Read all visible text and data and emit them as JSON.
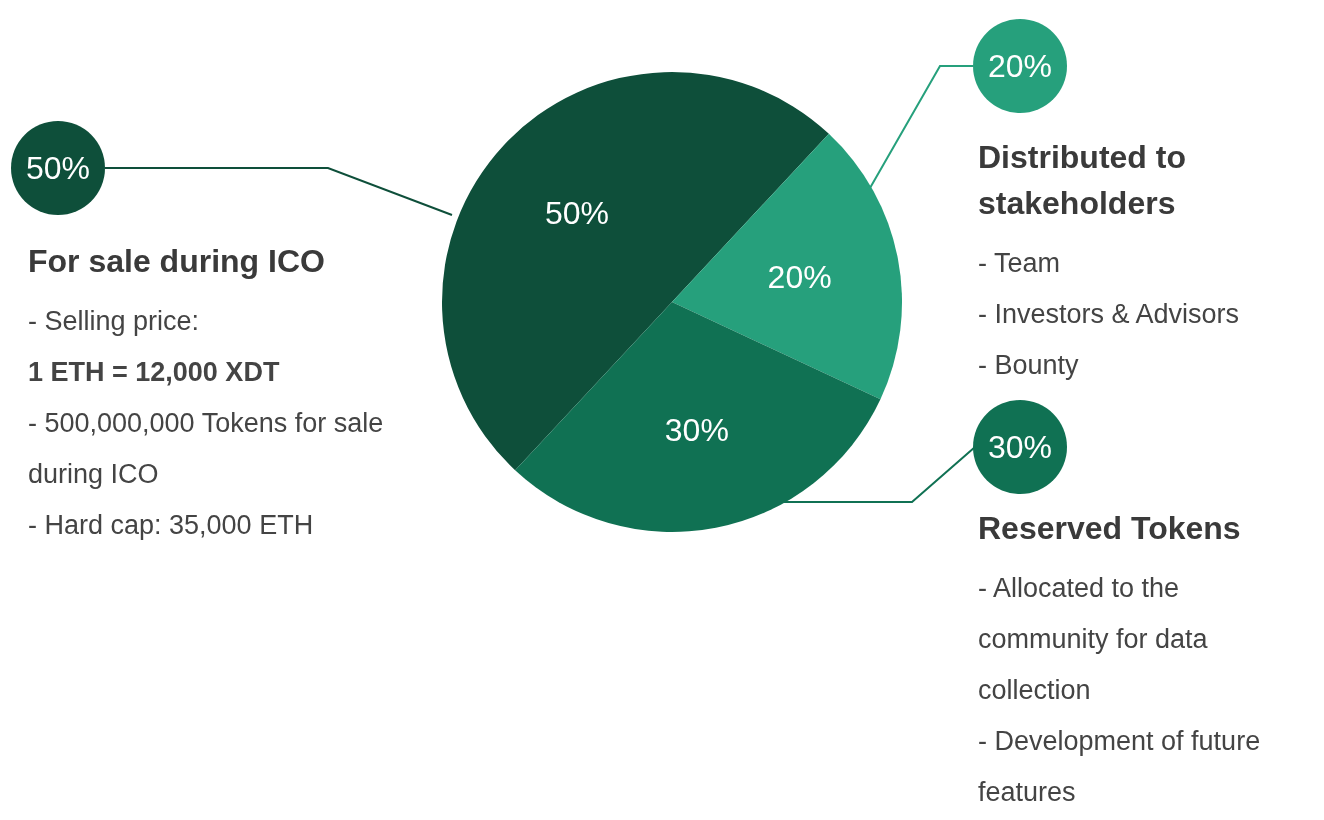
{
  "chart_data": {
    "type": "pie",
    "categories": [
      "For sale during ICO",
      "Distributed to stakeholders",
      "Reserved Tokens"
    ],
    "values": [
      50,
      20,
      30
    ],
    "colors": [
      "#0e4f3a",
      "#26a07c",
      "#107153"
    ],
    "value_labels": [
      "50%",
      "20%",
      "30%"
    ],
    "annotations": [
      "- Selling price:",
      "1 ETH = 12,000 XDT",
      "- 500,000,000 Tokens for sale during ICO",
      "- Hard cap: 35,000 ETH",
      "- Team",
      "- Investors & Advisors",
      "- Bounty",
      "- Allocated to the community for data collection",
      "- Development of future features"
    ],
    "legend": false
  }
}
